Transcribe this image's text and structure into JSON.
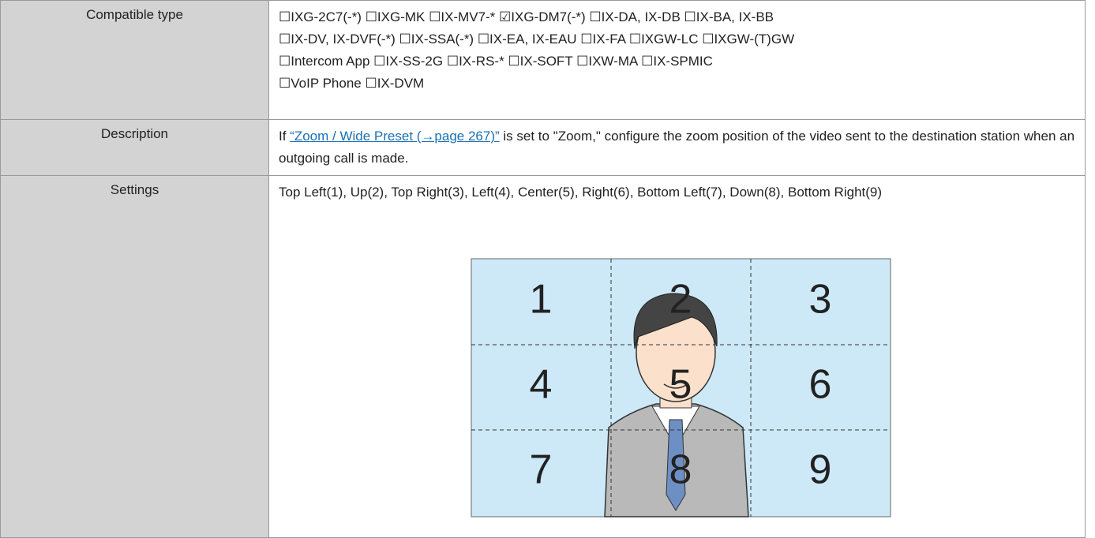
{
  "table": {
    "rows": [
      {
        "label": "Compatible type",
        "lines": [
          "☐IXG-2C7(-*) ☐IXG-MK ☐IX-MV7-* ☑IXG-DM7(-*) ☐IX-DA, IX-DB ☐IX-BA, IX-BB",
          "☐IX-DV, IX-DVF(-*) ☐IX-SSA(-*) ☐IX-EA, IX-EAU ☐IX-FA ☐IXGW-LC ☐IXGW-(T)GW",
          "☐Intercom App ☐IX-SS-2G ☐IX-RS-* ☐IX-SOFT ☐IXW-MA ☐IX-SPMIC",
          "☐VoIP Phone ☐IX-DVM"
        ]
      },
      {
        "label": "Description",
        "before": "If ",
        "link": "“Zoom / Wide Preset (→page 267)”",
        "after": " is set to \"Zoom,\" configure the zoom position of the video sent to the destination station when an outgoing call is made."
      },
      {
        "label": "Settings",
        "text": "Top Left(1), Up(2), Top Right(3), Left(4), Center(5), Right(6), Bottom Left(7), Down(8), Bottom Right(9)",
        "grid": [
          "1",
          "2",
          "3",
          "4",
          "5",
          "6",
          "7",
          "8",
          "9"
        ]
      }
    ]
  }
}
